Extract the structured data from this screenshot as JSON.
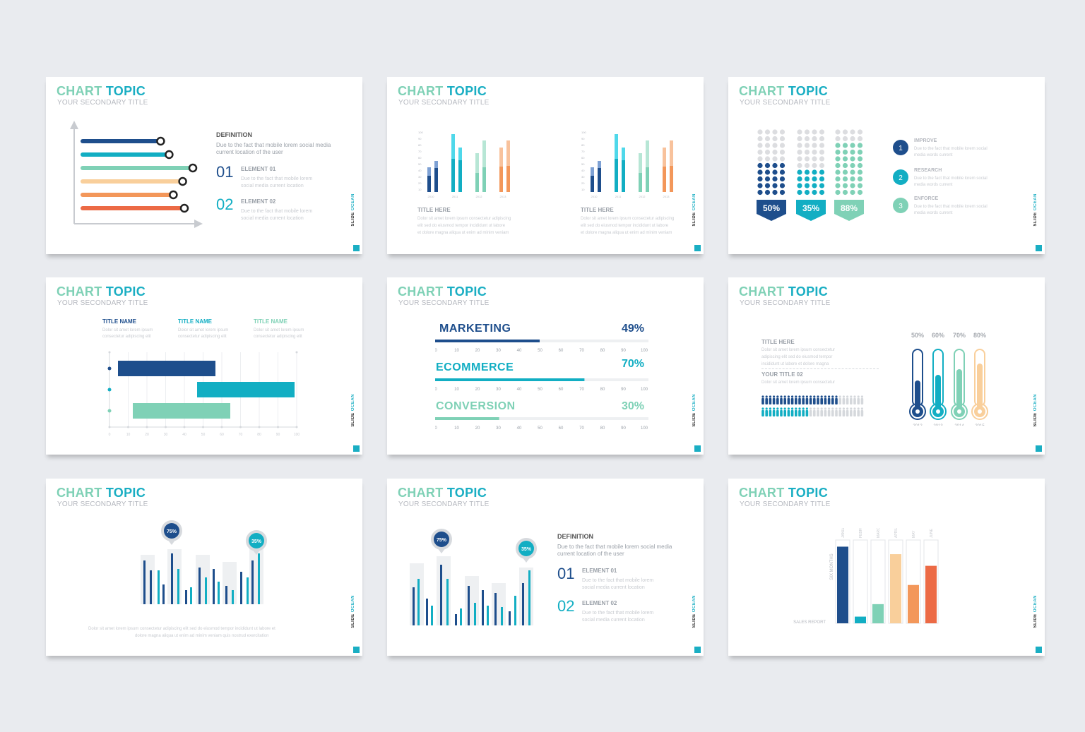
{
  "common": {
    "title_word1": "CHART",
    "title_word2": "TOPIC",
    "subtitle": "YOUR SECONDARY TITLE",
    "brand_word1": "SLIDE",
    "brand_word2": "OCEAN"
  },
  "slide1": {
    "definition_label": "DEFINITION",
    "definition_text_1": "Due to the fact that mobile lorem social media",
    "definition_text_2": "current location of the user",
    "element1_num": "01",
    "element1_label": "ELEMENT 01",
    "element1_text_1": "Due to the fact that mobile lorem",
    "element1_text_2": "social media current location",
    "element2_num": "02",
    "element2_label": "ELEMENT 02",
    "element2_text_1": "Due to the fact that mobile lorem",
    "element2_text_2": "social media current location",
    "bars": [
      {
        "value": 0.62,
        "color": "#1e4e8c"
      },
      {
        "value": 0.72,
        "color": "#12aec3"
      },
      {
        "value": 1.0,
        "color": "#7fd1b6"
      },
      {
        "value": 0.88,
        "color": "#f9cf9b"
      },
      {
        "value": 0.77,
        "color": "#f3975a"
      },
      {
        "value": 0.9,
        "color": "#ec6a45"
      }
    ]
  },
  "slide2": {
    "left_title": "TITLE HERE",
    "right_title": "TITLE HERE",
    "desc_1": "Dolor sit amet lorem ipsum consectetur adipiscing",
    "desc_2": "elit sed do eiusmod tempor incididunt ut labore",
    "desc_3": "et dolore magna aliqua ut enim ad minim veniam",
    "y_ticks": [
      "100",
      "90",
      "80",
      "70",
      "60",
      "50",
      "40",
      "30",
      "20",
      "10"
    ],
    "x_labels": [
      "2010",
      "2011",
      "2012",
      "2013"
    ]
  },
  "slide3": {
    "percent_1": "50%",
    "percent_2": "35%",
    "percent_3": "88%",
    "items": [
      {
        "num": "1",
        "label": "IMPROVE",
        "text_1": "Due to the fact that mobile lorem social",
        "text_2": "media words current",
        "color": "#1e4e8c"
      },
      {
        "num": "2",
        "label": "RESEARCH",
        "text_1": "Due to the fact that mobile lorem social",
        "text_2": "media words current",
        "color": "#12aec3"
      },
      {
        "num": "3",
        "label": "ENFORCE",
        "text_1": "Due to the fact that mobile lorem social",
        "text_2": "media words current",
        "color": "#7fd1b6"
      }
    ]
  },
  "slide4": {
    "title_name_1": "TITLE NAME",
    "title_name_2": "TITLE NAME",
    "title_name_3": "TITLE NAME",
    "desc_1": "Dolor sit amet lorem ipsum",
    "desc_2": "consectetur adipiscing elit",
    "x_ticks": [
      "0",
      "10",
      "20",
      "30",
      "40",
      "50",
      "60",
      "70",
      "80",
      "90",
      "100"
    ]
  },
  "slide5": {
    "rows": [
      {
        "label": "MARKETING",
        "percent": "49%",
        "value": 49,
        "color": "#1e4e8c"
      },
      {
        "label": "ECOMMERCE",
        "percent": "70%",
        "value": 70,
        "color": "#12aec3"
      },
      {
        "label": "CONVERSION",
        "percent": "30%",
        "value": 30,
        "color": "#7fd1b6"
      }
    ],
    "ticks": [
      "0",
      "10",
      "20",
      "30",
      "40",
      "50",
      "60",
      "70",
      "80",
      "90",
      "100"
    ]
  },
  "slide6": {
    "title_here": "TITLE HERE",
    "your_title_02": "YOUR TITLE 02",
    "desc_1": "Dolor sit amet lorem ipsum consectetur",
    "desc_2": "adipiscing elit sed do eiusmod tempor",
    "desc_3": "incididunt ut labore et dolore magna",
    "thermo": [
      {
        "pct": "50%",
        "year": "2012",
        "value": 50,
        "color": "#1e4e8c"
      },
      {
        "pct": "60%",
        "year": "2013",
        "value": 60,
        "color": "#12aec3"
      },
      {
        "pct": "70%",
        "year": "2014",
        "value": 70,
        "color": "#7fd1b6"
      },
      {
        "pct": "80%",
        "year": "2015",
        "value": 80,
        "color": "#f9cf9b"
      }
    ]
  },
  "slide7": {
    "callout_1": "75%",
    "callout_2": "35%",
    "caption_1": "Dolor sit amet lorem ipsum consectetur adipiscing elit sed do eiusmod tempor incididunt ut labore et",
    "caption_2": "dolore magna aliqua ut enim ad minim veniam quis nostrud exercitation"
  },
  "slide8": {
    "callout_1": "75%",
    "callout_2": "35%",
    "definition_label": "DEFINITION",
    "definition_text_1": "Due to the fact that mobile lorem social media",
    "definition_text_2": "current location of the user",
    "element1_num": "01",
    "element1_label": "ELEMENT 01",
    "element1_text_1": "Due to the fact that mobile lorem",
    "element1_text_2": "social media current location",
    "element2_num": "02",
    "element2_label": "ELEMENT 02",
    "element2_text_1": "Due to the fact that mobile lorem",
    "element2_text_2": "social media current location"
  },
  "slide9": {
    "y_label": "SIX MONTHS",
    "x_label": "SALES REPORT",
    "months": [
      "JANUARY",
      "FEBRUARY",
      "MARCH",
      "APRIL",
      "MAY",
      "JUNE"
    ],
    "values": [
      92,
      8,
      23,
      83,
      46,
      69
    ],
    "colors": [
      "#1e4e8c",
      "#12aec3",
      "#7fd1b6",
      "#f9cf9b",
      "#f3975a",
      "#ec6a45"
    ]
  }
}
